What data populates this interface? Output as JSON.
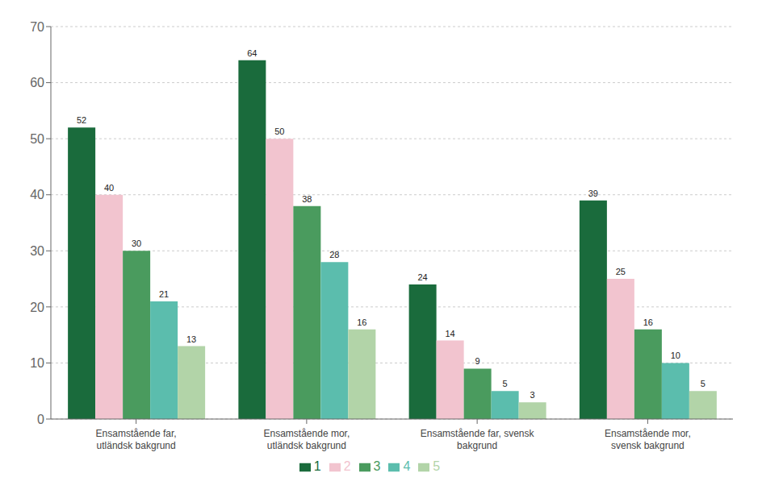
{
  "chart_data": {
    "type": "bar",
    "categories": [
      "Ensamstående far,\nutländsk bakgrund",
      "Ensamstående mor,\nutländsk bakgrund",
      "Ensamstående far, svensk\nbakgrund",
      "Ensamstående mor,\nsvensk bakgrund"
    ],
    "series": [
      {
        "name": "1",
        "color": "#1a6b3c",
        "values": [
          52,
          64,
          24,
          39
        ]
      },
      {
        "name": "2",
        "color": "#f2c4cf",
        "values": [
          40,
          50,
          14,
          25
        ]
      },
      {
        "name": "3",
        "color": "#4a9b5e",
        "values": [
          30,
          38,
          9,
          16
        ]
      },
      {
        "name": "4",
        "color": "#5bbdad",
        "values": [
          21,
          28,
          5,
          10
        ]
      },
      {
        "name": "5",
        "color": "#b2d4a8",
        "values": [
          13,
          16,
          3,
          5
        ]
      }
    ],
    "ylim": [
      0,
      70
    ],
    "yticks": [
      0,
      10,
      20,
      30,
      40,
      50,
      60,
      70
    ],
    "grid": true,
    "legend": "bottom",
    "data_labels": true
  }
}
